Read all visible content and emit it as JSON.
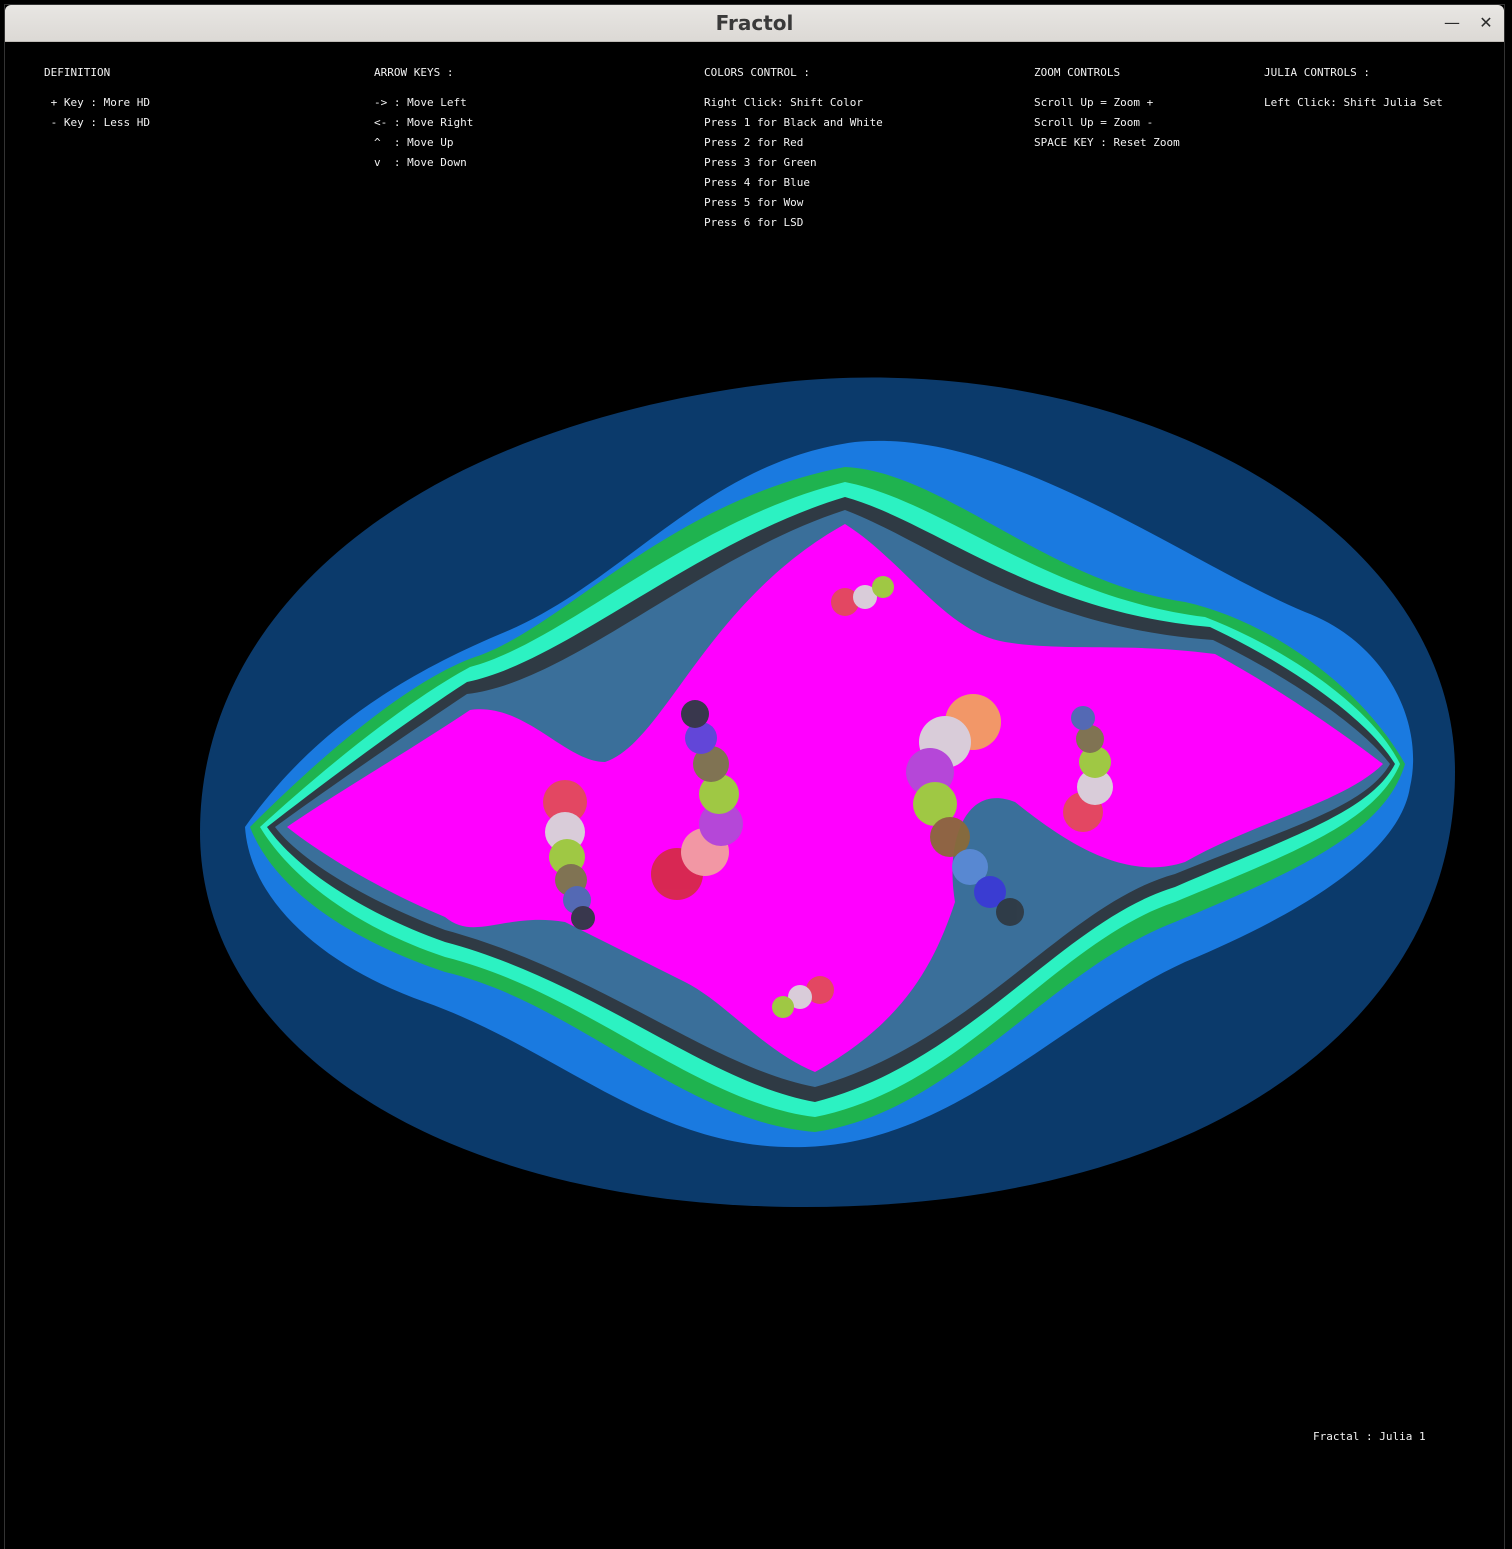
{
  "window": {
    "title": "Fractol",
    "minimize_icon": "minimize-icon",
    "close_icon": "close-icon"
  },
  "help": {
    "definition": {
      "heading": "DEFINITION",
      "lines": [
        " + Key : More HD",
        " - Key : Less HD"
      ]
    },
    "arrow_keys": {
      "heading": "ARROW KEYS :",
      "lines": [
        "-> : Move Left",
        "<- : Move Right",
        "^  : Move Up",
        "v  : Move Down"
      ]
    },
    "colors": {
      "heading": "COLORS CONTROL :",
      "lines": [
        "Right Click: Shift Color",
        "Press 1 for Black and White",
        "Press 2 for Red",
        "Press 3 for Green",
        "Press 4 for Blue",
        "Press 5 for Wow",
        "Press 6 for LSD"
      ]
    },
    "zoom": {
      "heading": "ZOOM CONTROLS",
      "lines": [
        "Scroll Up = Zoom +",
        "Scroll Up = Zoom -",
        "SPACE KEY : Reset Zoom"
      ]
    },
    "julia": {
      "heading": "JULIA CONTROLS :",
      "lines": [
        "Left Click: Shift Julia Set"
      ]
    }
  },
  "status": "Fractal : Julia 1",
  "colors": {
    "outer": "#0b3a6b",
    "ring2": "#1a7ae0",
    "ring3": "#1fb34f",
    "ring4": "#2cf2c2",
    "ring5": "#2f3a44",
    "ring6": "#3a6f9a",
    "core": "#ff00ff"
  }
}
